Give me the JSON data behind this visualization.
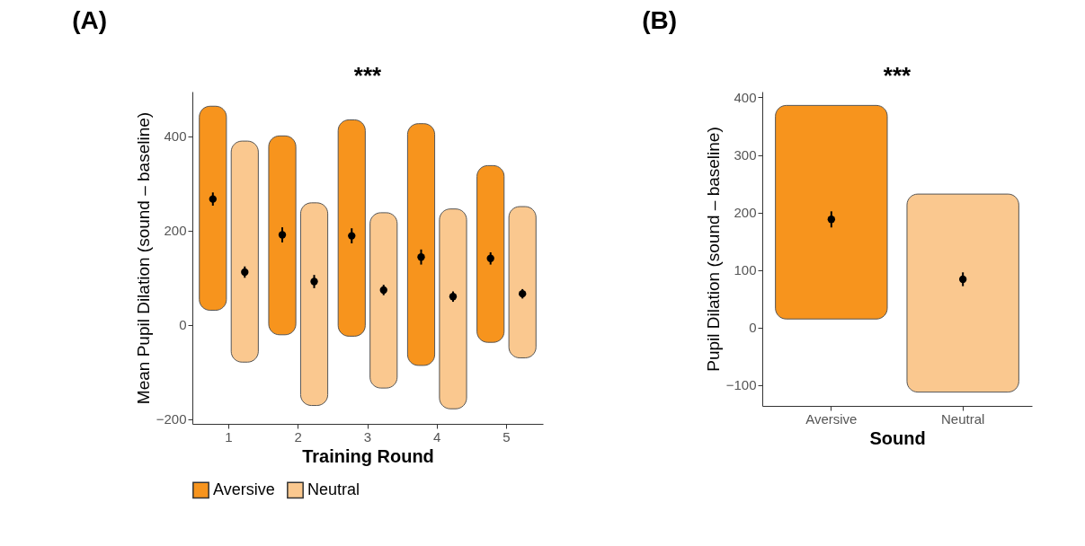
{
  "chart_data": [
    {
      "type": "bar",
      "title": "(A)",
      "xlabel": "Training Round",
      "ylabel": "Mean Pupil Dilation (sound – baseline)",
      "categories": [
        "1",
        "2",
        "3",
        "4",
        "5"
      ],
      "ylim": [
        -210,
        495
      ],
      "yticks": [
        -200,
        0,
        200,
        400
      ],
      "grid": false,
      "legend": "bottom",
      "marker": "circle",
      "annotations": [
        "***"
      ],
      "series": [
        {
          "name": "Aversive",
          "color": "#f7941d",
          "base": [
            31,
            -21,
            -24,
            -86,
            -37
          ],
          "values": [
            433,
            422,
            459,
            513,
            375
          ]
        },
        {
          "name": "Neutral",
          "color": "#fac88f",
          "base": [
            -79,
            -171,
            -134,
            -178,
            -70
          ],
          "values": [
            469,
            430,
            372,
            424,
            321
          ]
        },
        {
          "type": "scatter",
          "color": "#000000",
          "x": [
            "1",
            "2",
            "3",
            "4",
            "5"
          ],
          "values": [
            267,
            191,
            189,
            144,
            141
          ],
          "errors": [
            14,
            16,
            16,
            16,
            13
          ]
        },
        {
          "type": "scatter",
          "color": "#000000",
          "x": [
            "1",
            "2",
            "3",
            "4",
            "5"
          ],
          "values": [
            112,
            92,
            74,
            60,
            66
          ],
          "errors": [
            12,
            14,
            11,
            11,
            10
          ]
        }
      ]
    },
    {
      "type": "bar",
      "title": "(B)",
      "xlabel": "Sound",
      "ylabel": "Pupil Dilation (sound – baseline)",
      "categories": [
        "Aversive",
        "Neutral"
      ],
      "ylim": [
        -136,
        410
      ],
      "yticks": [
        -100,
        0,
        100,
        200,
        300,
        400
      ],
      "grid": false,
      "marker": "circle",
      "annotations": [
        "***"
      ],
      "series": [
        {
          "colors": [
            "#f7941d",
            "#fac88f"
          ],
          "base": [
            15,
            -112
          ],
          "values": [
            371,
            344
          ]
        },
        {
          "type": "scatter",
          "color": "#000000",
          "x": [
            "Aversive",
            "Neutral"
          ],
          "values": [
            188,
            84
          ],
          "errors": [
            14,
            12
          ]
        }
      ]
    }
  ]
}
